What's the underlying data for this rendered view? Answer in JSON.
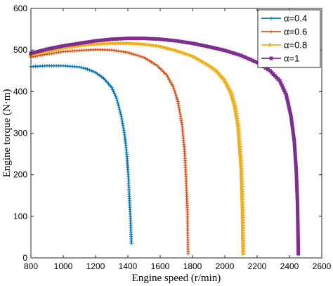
{
  "chart_data": {
    "type": "line",
    "title": "",
    "xlabel": "Engine speed (r/min)",
    "ylabel": "Engine torque (N·m)",
    "xlim": [
      800,
      2600
    ],
    "ylim": [
      0,
      600
    ],
    "xticks": [
      800,
      1000,
      1200,
      1400,
      1600,
      1800,
      2000,
      2200,
      2400,
      2600
    ],
    "yticks": [
      0,
      100,
      200,
      300,
      400,
      500,
      600
    ],
    "grid": false,
    "legend_position": "top-right",
    "series": [
      {
        "name": "α=0.4",
        "color": "#0072BD",
        "marker": "plus",
        "x": [
          800,
          900,
          1000,
          1100,
          1150,
          1200,
          1250,
          1300,
          1330,
          1360,
          1380,
          1395,
          1405,
          1415,
          1422
        ],
        "y": [
          460,
          462,
          462,
          459,
          454,
          446,
          432,
          410,
          384,
          340,
          296,
          244,
          180,
          100,
          35
        ]
      },
      {
        "name": "α=0.6",
        "color": "#D95319",
        "marker": "plus",
        "x": [
          800,
          900,
          1000,
          1100,
          1200,
          1300,
          1400,
          1500,
          1580,
          1640,
          1680,
          1710,
          1735,
          1750,
          1760,
          1768,
          1773
        ],
        "y": [
          483,
          490,
          496,
          499,
          501,
          500,
          494,
          482,
          463,
          440,
          412,
          376,
          320,
          262,
          195,
          110,
          10
        ]
      },
      {
        "name": "α=0.8",
        "color": "#EDB120",
        "marker": "triangle",
        "x": [
          800,
          900,
          1000,
          1100,
          1200,
          1300,
          1400,
          1500,
          1600,
          1700,
          1800,
          1900,
          1950,
          2000,
          2040,
          2065,
          2085,
          2095,
          2105,
          2112,
          2117
        ],
        "y": [
          487,
          496,
          504,
          510,
          514,
          516,
          516,
          514,
          509,
          499,
          486,
          464,
          450,
          428,
          398,
          365,
          318,
          268,
          215,
          128,
          10
        ]
      },
      {
        "name": "α=1",
        "color": "#7E2F8E",
        "marker": "square",
        "x": [
          800,
          900,
          1000,
          1100,
          1200,
          1300,
          1400,
          1500,
          1600,
          1700,
          1800,
          1900,
          2000,
          2100,
          2200,
          2280,
          2340,
          2380,
          2410,
          2430,
          2442,
          2450,
          2455
        ],
        "y": [
          492,
          502,
          510,
          516,
          522,
          526,
          528,
          528,
          526,
          522,
          516,
          508,
          499,
          487,
          470,
          450,
          426,
          392,
          340,
          280,
          210,
          130,
          10
        ]
      }
    ]
  }
}
